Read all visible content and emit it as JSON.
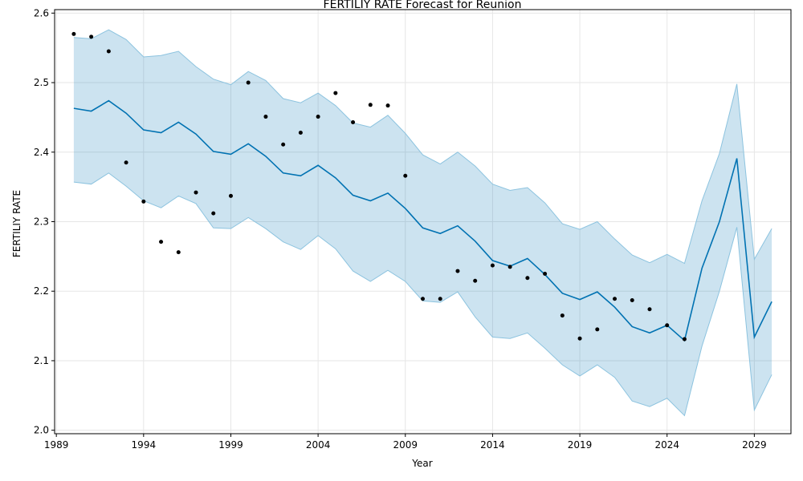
{
  "chart_data": {
    "type": "line",
    "title": "FERTILIY RATE Forecast for Reunion",
    "xlabel": "Year",
    "ylabel": "FERTILIY RATE",
    "xlim": [
      1988.9,
      2031.1
    ],
    "ylim": [
      1.995,
      2.605
    ],
    "x_ticks": [
      1989,
      1994,
      1999,
      2004,
      2009,
      2014,
      2019,
      2024,
      2029
    ],
    "y_ticks": [
      2.0,
      2.1,
      2.2,
      2.3,
      2.4,
      2.5,
      2.6
    ],
    "y_tick_labels": [
      "2.0",
      "2.1",
      "2.2",
      "2.3",
      "2.4",
      "2.5",
      "2.6"
    ],
    "grid": true,
    "colors": {
      "forecast_line": "#0072B2",
      "interval_fill": "#0072B2",
      "interval_edge": "#8cc3df",
      "observed_points": "#000000",
      "grid": "#e6e6e6"
    },
    "series": [
      {
        "kind": "observed",
        "x": [
          1990,
          1991,
          1992,
          1993,
          1994,
          1995,
          1996,
          1997,
          1998,
          1999,
          2000,
          2001,
          2002,
          2003,
          2004,
          2005,
          2006,
          2007,
          2008,
          2009,
          2010,
          2011,
          2012,
          2013,
          2014,
          2015,
          2016,
          2017,
          2018,
          2019,
          2020,
          2021,
          2022,
          2023,
          2024,
          2025
        ],
        "values": [
          2.57,
          2.566,
          2.545,
          2.385,
          2.329,
          2.271,
          2.256,
          2.342,
          2.312,
          2.337,
          2.5,
          2.451,
          2.411,
          2.428,
          2.451,
          2.485,
          2.443,
          2.468,
          2.467,
          2.366,
          2.189,
          2.189,
          2.229,
          2.215,
          2.237,
          2.235,
          2.219,
          2.225,
          2.165,
          2.132,
          2.145,
          2.189,
          2.187,
          2.174,
          2.151,
          2.131
        ]
      },
      {
        "kind": "forecast",
        "x": [
          1990,
          1991,
          1992,
          1993,
          1994,
          1995,
          1996,
          1997,
          1998,
          1999,
          2000,
          2001,
          2002,
          2003,
          2004,
          2005,
          2006,
          2007,
          2008,
          2009,
          2010,
          2011,
          2012,
          2013,
          2014,
          2015,
          2016,
          2017,
          2018,
          2019,
          2020,
          2021,
          2022,
          2023,
          2024,
          2025,
          2026,
          2027,
          2028,
          2029,
          2030
        ],
        "values": [
          2.463,
          2.459,
          2.474,
          2.456,
          2.432,
          2.428,
          2.443,
          2.426,
          2.401,
          2.397,
          2.412,
          2.394,
          2.37,
          2.366,
          2.381,
          2.363,
          2.338,
          2.33,
          2.341,
          2.319,
          2.291,
          2.283,
          2.294,
          2.272,
          2.244,
          2.236,
          2.247,
          2.224,
          2.197,
          2.188,
          2.199,
          2.177,
          2.149,
          2.14,
          2.151,
          2.129,
          2.233,
          2.3,
          2.391,
          2.134,
          2.185
        ],
        "upper": [
          2.565,
          2.563,
          2.576,
          2.562,
          2.537,
          2.539,
          2.545,
          2.523,
          2.505,
          2.497,
          2.516,
          2.503,
          2.477,
          2.471,
          2.485,
          2.467,
          2.442,
          2.436,
          2.453,
          2.427,
          2.396,
          2.383,
          2.4,
          2.38,
          2.354,
          2.345,
          2.349,
          2.327,
          2.297,
          2.289,
          2.3,
          2.275,
          2.252,
          2.241,
          2.253,
          2.24,
          2.33,
          2.398,
          2.498,
          2.246,
          2.29
        ],
        "lower": [
          2.357,
          2.354,
          2.37,
          2.351,
          2.33,
          2.32,
          2.337,
          2.326,
          2.291,
          2.29,
          2.306,
          2.29,
          2.271,
          2.26,
          2.28,
          2.261,
          2.229,
          2.214,
          2.23,
          2.214,
          2.186,
          2.184,
          2.199,
          2.163,
          2.134,
          2.132,
          2.14,
          2.118,
          2.094,
          2.078,
          2.094,
          2.076,
          2.042,
          2.034,
          2.046,
          2.021,
          2.121,
          2.2,
          2.292,
          2.029,
          2.08
        ]
      }
    ]
  }
}
